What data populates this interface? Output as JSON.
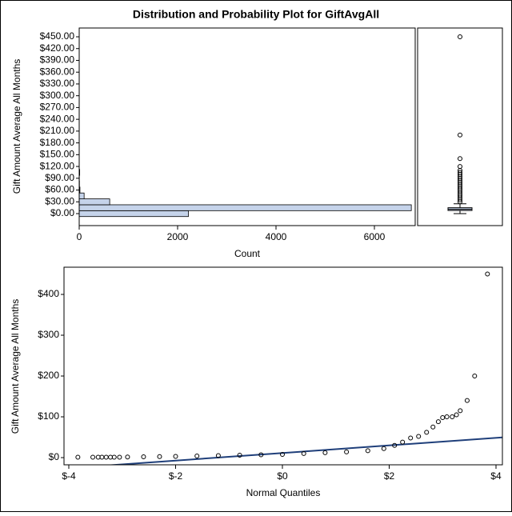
{
  "title": "Distribution and Probability Plot for GiftAvgAll",
  "chart_data": [
    {
      "type": "histogram",
      "orientation": "horizontal",
      "ylabel": "Gift Amount Average All Months",
      "xlabel": "Count",
      "bins": [
        -7.5,
        7.5,
        22.5,
        37.5,
        52.5,
        67.5,
        82.5,
        97.5,
        112.5
      ],
      "values": [
        2220,
        6750,
        620,
        100,
        15,
        5,
        3,
        10
      ],
      "color": "#c5d3ea",
      "ylim": [
        -30.5,
        472.4
      ],
      "yticks": [
        {
          "value": 0,
          "label": "$0.00"
        },
        {
          "value": 30,
          "label": "$30.00"
        },
        {
          "value": 60,
          "label": "$60.00"
        },
        {
          "value": 90,
          "label": "$90.00"
        },
        {
          "value": 120,
          "label": "$120.00"
        },
        {
          "value": 150,
          "label": "$150.00"
        },
        {
          "value": 180,
          "label": "$180.00"
        },
        {
          "value": 210,
          "label": "$210.00"
        },
        {
          "value": 240,
          "label": "$240.00"
        },
        {
          "value": 270,
          "label": "$270.00"
        },
        {
          "value": 300,
          "label": "$300.00"
        },
        {
          "value": 330,
          "label": "$330.00"
        },
        {
          "value": 360,
          "label": "$360.00"
        },
        {
          "value": 390,
          "label": "$390.00"
        },
        {
          "value": 420,
          "label": "$420.00"
        },
        {
          "value": 450,
          "label": "$450.00"
        }
      ],
      "xlim": [
        0,
        6829
      ],
      "xticks": [
        0,
        2000,
        4000,
        6000
      ]
    },
    {
      "type": "box",
      "ylim": [
        -30.5,
        472.4
      ],
      "whisker_low": 0,
      "q1": 8,
      "median": 11,
      "q3": 15,
      "whisker_high": 25,
      "color": "#c5d3ea",
      "outliers": [
        450,
        200,
        140,
        120,
        110,
        105,
        100,
        95,
        90,
        85,
        80,
        75,
        70,
        65,
        60,
        55,
        50,
        45,
        40,
        35,
        30
      ]
    },
    {
      "type": "scatter",
      "ylabel": "Gift Amount Average All Months",
      "xlabel": "Normal Quantiles",
      "x": [
        -3.83,
        -3.55,
        -3.45,
        -3.38,
        -3.3,
        -3.22,
        -3.15,
        -3.05,
        -2.9,
        -2.6,
        -2.3,
        -2.0,
        -1.6,
        -1.2,
        -0.8,
        -0.4,
        0,
        0.4,
        0.8,
        1.2,
        1.6,
        1.9,
        2.1,
        2.25,
        2.4,
        2.55,
        2.7,
        2.82,
        2.92,
        3.0,
        3.08,
        3.18,
        3.26,
        3.33,
        3.46,
        3.6,
        3.84
      ],
      "y": [
        1,
        1,
        1,
        1,
        1,
        1,
        1,
        1,
        1.5,
        2,
        2.5,
        3,
        4,
        5,
        6,
        7,
        8,
        10,
        12,
        14,
        17,
        22,
        30,
        38,
        48,
        52,
        62,
        75,
        88,
        98,
        100,
        100,
        105,
        115,
        140,
        200,
        450
      ],
      "reference_line": {
        "intercept": 11.3,
        "slope": 9.3,
        "color": "#1f3f7a"
      },
      "xlim": [
        -4.09,
        4.12
      ],
      "ylim": [
        -17.6,
        466.7
      ],
      "xticks": [
        {
          "value": -4,
          "label": "$-4"
        },
        {
          "value": -2,
          "label": "$-2"
        },
        {
          "value": 0,
          "label": "$0"
        },
        {
          "value": 2,
          "label": "$2"
        },
        {
          "value": 4,
          "label": "$4"
        }
      ],
      "yticks": [
        {
          "value": 0,
          "label": "$0"
        },
        {
          "value": 100,
          "label": "$100"
        },
        {
          "value": 200,
          "label": "$200"
        },
        {
          "value": 300,
          "label": "$300"
        },
        {
          "value": 400,
          "label": "$400"
        }
      ]
    }
  ]
}
